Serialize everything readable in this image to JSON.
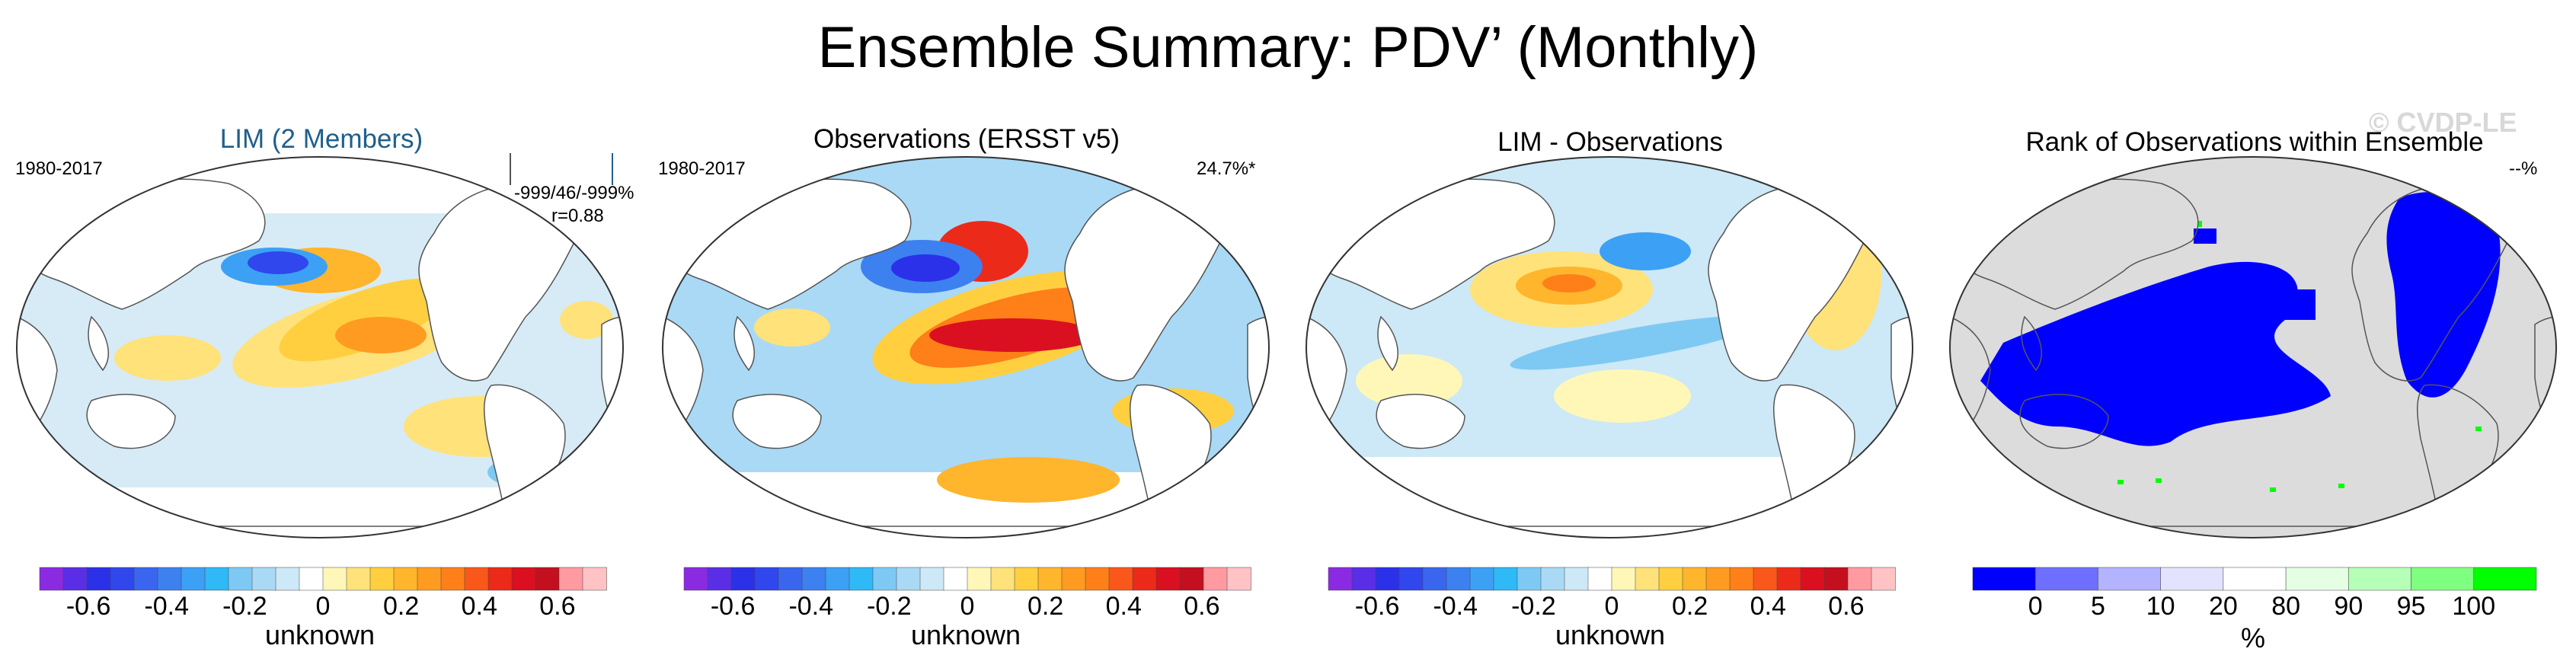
{
  "title": "Ensemble Summary: PDV’ (Monthly)",
  "watermark": "© CVDP-LE",
  "colors": {
    "lim_title": "#1f5f8b",
    "land_gray": "#dcdcdc",
    "coast": "#555555",
    "diverging": [
      "#8a2be2",
      "#5a2ee6",
      "#2b31e8",
      "#2f47ec",
      "#3a66ef",
      "#3d80f0",
      "#3ca0f5",
      "#2fb9f7",
      "#7ec9f4",
      "#a9d9f5",
      "#cde8f6",
      "#ffffff",
      "#fff7b8",
      "#ffe27a",
      "#ffcf3f",
      "#ffb52c",
      "#ff9b21",
      "#ff7f19",
      "#f9581a",
      "#ec2a1a",
      "#da1020",
      "#c4101e",
      "#ff9aa0",
      "#ffc2c5"
    ],
    "rank": [
      "#0000ff",
      "#6f6fff",
      "#b3b3ff",
      "#e3e3ff",
      "#ffffff",
      "#e4ffe4",
      "#b6ffb6",
      "#7fff7f",
      "#00ff00"
    ]
  },
  "panels": [
    {
      "title": "LIM (2 Members)",
      "left_label": "1980-2017",
      "right_label": "-999/46/-999%",
      "right_label2": "r=0.88",
      "colorbar_title": "unknown",
      "ticks": [
        "-0.6",
        "-0.4",
        "-0.2",
        "0",
        "0.2",
        "0.4",
        "0.6"
      ]
    },
    {
      "title": "Observations (ERSST v5)",
      "left_label": "1980-2017",
      "right_label": "24.7%*",
      "colorbar_title": "unknown",
      "ticks": [
        "-0.6",
        "-0.4",
        "-0.2",
        "0",
        "0.2",
        "0.4",
        "0.6"
      ]
    },
    {
      "title": "LIM - Observations",
      "colorbar_title": "unknown",
      "ticks": [
        "-0.6",
        "-0.4",
        "-0.2",
        "0",
        "0.2",
        "0.4",
        "0.6"
      ]
    },
    {
      "title": "Rank of Observations within Ensemble",
      "right_label": "--%",
      "colorbar_title": "%",
      "ticks": [
        "0",
        "5",
        "10",
        "20",
        "80",
        "90",
        "95",
        "100"
      ]
    }
  ]
}
